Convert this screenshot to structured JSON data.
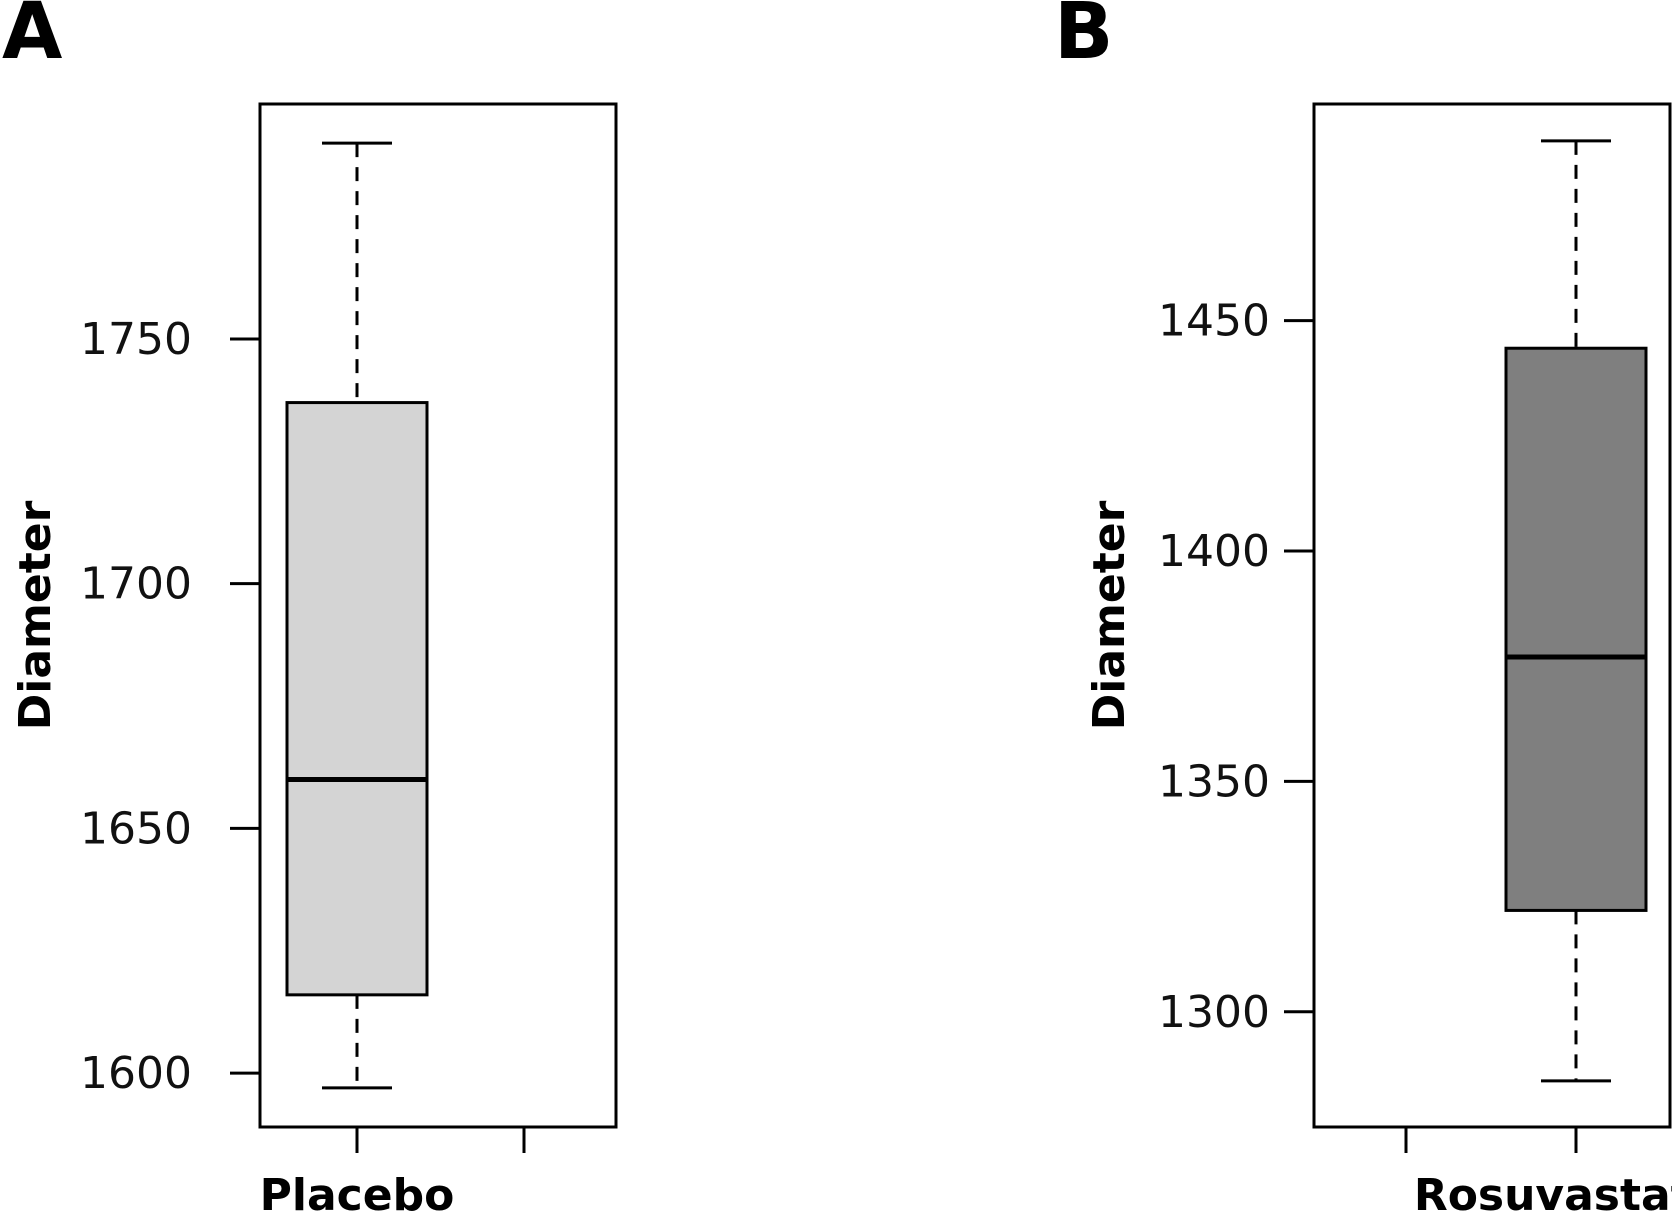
{
  "chart_data": [
    {
      "type": "boxplot",
      "panel": "A",
      "ylabel": "Diameter",
      "yticks": [
        1600,
        1650,
        1700,
        1750
      ],
      "ylim": [
        1589,
        1798
      ],
      "categories": [
        "Placebo",
        ""
      ],
      "boxes": [
        {
          "category": "Placebo",
          "min": 1597,
          "q1": 1616,
          "median": 1660,
          "q3": 1737,
          "max": 1790,
          "fill": "#d4d4d4"
        }
      ]
    },
    {
      "type": "boxplot",
      "panel": "B",
      "ylabel": "Diameter",
      "yticks": [
        1300,
        1350,
        1400,
        1450
      ],
      "ylim": [
        1275,
        1497
      ],
      "categories": [
        "",
        "Rosuvastatin"
      ],
      "boxes": [
        {
          "category": "Rosuvastatin",
          "min": 1285,
          "q1": 1322,
          "median": 1377,
          "q3": 1444,
          "max": 1489,
          "fill": "#7f7f7f"
        }
      ]
    }
  ]
}
